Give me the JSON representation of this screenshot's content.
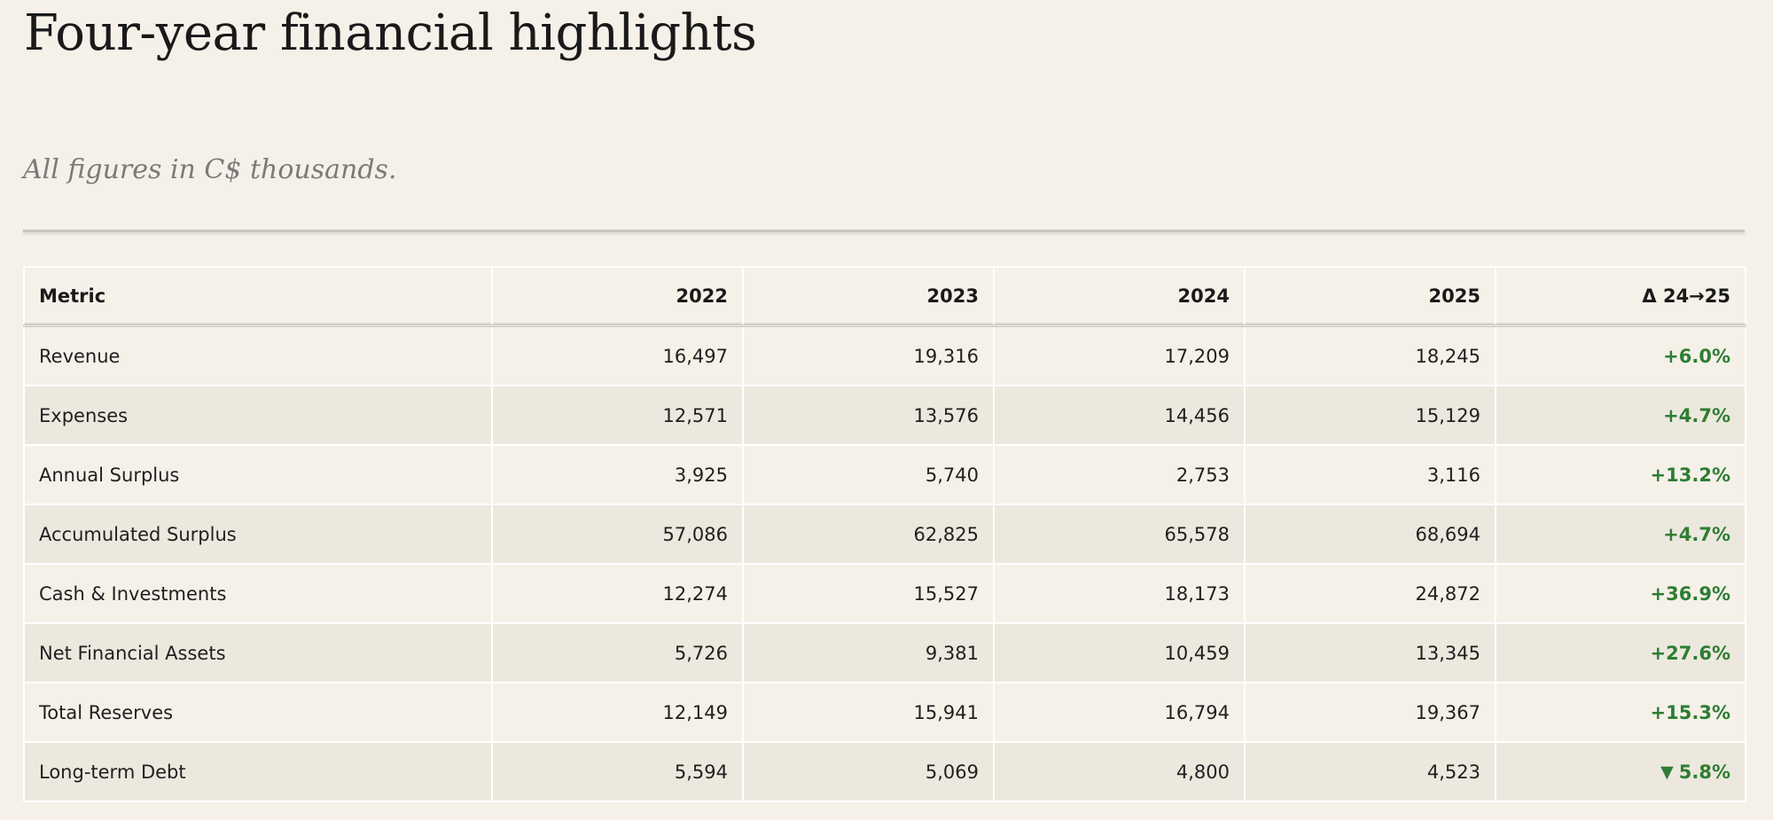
{
  "page": {
    "title": "Four-year financial highlights",
    "subtitle": "All figures in C$ thousands."
  },
  "table": {
    "columns": [
      "Metric",
      "2022",
      "2023",
      "2024",
      "2025",
      "Δ 24→25"
    ],
    "rows": [
      {
        "metric": "Revenue",
        "values": [
          "16,497",
          "19,316",
          "17,209",
          "18,245"
        ],
        "delta": "+6.0%",
        "delta_icon": ""
      },
      {
        "metric": "Expenses",
        "values": [
          "12,571",
          "13,576",
          "14,456",
          "15,129"
        ],
        "delta": "+4.7%",
        "delta_icon": ""
      },
      {
        "metric": "Annual Surplus",
        "values": [
          "3,925",
          "5,740",
          "2,753",
          "3,116"
        ],
        "delta": "+13.2%",
        "delta_icon": ""
      },
      {
        "metric": "Accumulated Surplus",
        "values": [
          "57,086",
          "62,825",
          "65,578",
          "68,694"
        ],
        "delta": "+4.7%",
        "delta_icon": ""
      },
      {
        "metric": "Cash & Investments",
        "values": [
          "12,274",
          "15,527",
          "18,173",
          "24,872"
        ],
        "delta": "+36.9%",
        "delta_icon": ""
      },
      {
        "metric": "Net Financial Assets",
        "values": [
          "5,726",
          "9,381",
          "10,459",
          "13,345"
        ],
        "delta": "+27.6%",
        "delta_icon": ""
      },
      {
        "metric": "Total Reserves",
        "values": [
          "12,149",
          "15,941",
          "16,794",
          "19,367"
        ],
        "delta": "+15.3%",
        "delta_icon": ""
      },
      {
        "metric": "Long-term Debt",
        "values": [
          "5,594",
          "5,069",
          "4,800",
          "4,523"
        ],
        "delta": "5.8%",
        "delta_icon": "▼"
      }
    ]
  },
  "colors": {
    "background": "#f5f1e9",
    "row_alt": "#ece8de",
    "positive": "#2e7d32",
    "subtitle": "#7a7a7a"
  }
}
